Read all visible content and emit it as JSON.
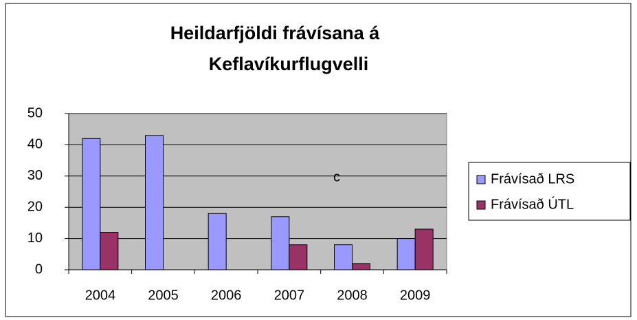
{
  "chart_data": {
    "type": "bar",
    "title": [
      "Heildarfjöldi frávísana á",
      "Keflavíkurflugvelli"
    ],
    "annotation": "c",
    "categories": [
      "2004",
      "2005",
      "2006",
      "2007",
      "2008",
      "2009"
    ],
    "series": [
      {
        "name": "Frávísað LRS",
        "color": "#9999ff",
        "values": [
          42,
          43,
          18,
          17,
          8,
          10
        ]
      },
      {
        "name": "Frávísað ÚTL",
        "color": "#993366",
        "values": [
          12,
          0,
          0,
          8,
          2,
          13
        ]
      }
    ],
    "ylim": [
      0,
      50
    ],
    "yticks": [
      0,
      10,
      20,
      30,
      40,
      50
    ],
    "grid": true,
    "legend": "right"
  }
}
